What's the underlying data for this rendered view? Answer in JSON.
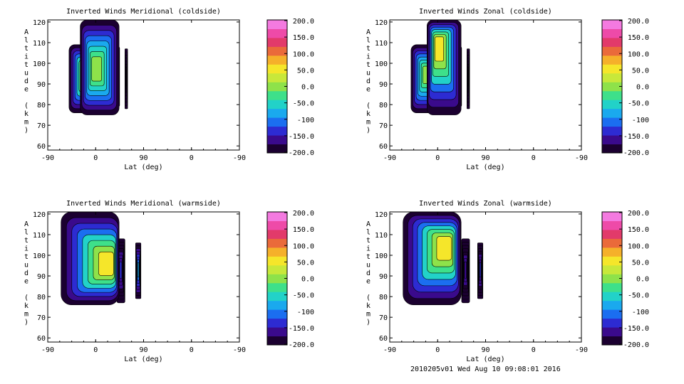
{
  "colors": {
    "background": "#ffffff",
    "axis": "#000000",
    "contour_line": "#000000",
    "colorbar": [
      "#1b0030",
      "#3a0a8c",
      "#2d2bd2",
      "#1b6ef0",
      "#1aa9ee",
      "#22d2c8",
      "#3ee08a",
      "#8ee24a",
      "#c8e83a",
      "#f5e62a",
      "#f5b02a",
      "#ea6a3a",
      "#e23a6a",
      "#ee4aa8",
      "#f47ae0"
    ]
  },
  "footer": "2010205v01 Wed Aug 10 09:08:01 2016",
  "chart_data": [
    {
      "type": "filled-contour",
      "title": "Inverted Winds Meridional (coldside)",
      "xlabel": "Lat (deg)",
      "ylabel": "Altitude (km)",
      "xticks": [
        "-90",
        "0",
        "90",
        "0",
        "-90"
      ],
      "yticks": [
        "60",
        "70",
        "80",
        "90",
        "100",
        "110",
        "120"
      ],
      "ylim": [
        58,
        121
      ],
      "colorbar_ticks": [
        "200.0",
        "150.0",
        "100.0",
        "50.0",
        "0.0",
        "-50.0",
        "-100",
        "-150.0",
        "-200.0"
      ],
      "colorbar_range": [
        -200,
        200
      ],
      "regions": [
        {
          "name": "blob-1",
          "lat_range": [
            -50,
            10
          ],
          "alt_range": [
            76,
            109
          ],
          "peak": 40,
          "center": [
            -15,
            95
          ]
        },
        {
          "name": "strip-1",
          "lat_range": [
            30,
            45
          ],
          "alt_range": [
            79,
            108
          ],
          "peak": -120,
          "center": [
            37,
            93
          ]
        },
        {
          "name": "strip-2",
          "lat_range": [
            55,
            60
          ],
          "alt_range": [
            78,
            107
          ],
          "peak": -200,
          "center": [
            57,
            93
          ]
        },
        {
          "name": "main-field",
          "lat_range": [
            -29,
            44
          ],
          "alt_range": [
            75,
            121
          ],
          "peak": 10,
          "center": [
            0,
            97
          ]
        }
      ]
    },
    {
      "type": "filled-contour",
      "title": "Inverted Winds Zonal (coldside)",
      "xlabel": "Lat (deg)",
      "ylabel": "Altitude (km)",
      "xticks": [
        "-90",
        "0",
        "90",
        "0",
        "-90"
      ],
      "yticks": [
        "60",
        "70",
        "80",
        "90",
        "100",
        "110",
        "120"
      ],
      "ylim": [
        58,
        121
      ],
      "colorbar_ticks": [
        "200.0",
        "150.0",
        "100.0",
        "50.0",
        "0.0",
        "-50.0",
        "-100",
        "-150.0",
        "-200.0"
      ],
      "colorbar_range": [
        -200,
        200
      ],
      "regions": [
        {
          "name": "blob-1",
          "lat_range": [
            -50,
            10
          ],
          "alt_range": [
            76,
            109
          ],
          "peak": -10,
          "center": [
            -20,
            95
          ]
        },
        {
          "name": "strip-1",
          "lat_range": [
            30,
            45
          ],
          "alt_range": [
            79,
            108
          ],
          "peak": -130,
          "center": [
            37,
            93
          ]
        },
        {
          "name": "strip-2",
          "lat_range": [
            55,
            60
          ],
          "alt_range": [
            78,
            107
          ],
          "peak": -200,
          "center": [
            57,
            93
          ]
        },
        {
          "name": "main-field",
          "lat_range": [
            -20,
            44
          ],
          "alt_range": [
            75,
            121
          ],
          "peak": 40,
          "center": [
            0,
            110
          ]
        }
      ]
    },
    {
      "type": "filled-contour",
      "title": "Inverted Winds Meridional (warmside)",
      "xlabel": "Lat (deg)",
      "ylabel": "Altitude (km)",
      "xticks": [
        "-90",
        "0",
        "90",
        "0",
        "-90"
      ],
      "yticks": [
        "60",
        "70",
        "80",
        "90",
        "100",
        "110",
        "120"
      ],
      "ylim": [
        58,
        121
      ],
      "colorbar_ticks": [
        "200.0",
        "150.0",
        "100.0",
        "50.0",
        "0.0",
        "-50.0",
        "-100",
        "-150.0",
        "-200.0"
      ],
      "colorbar_range": [
        -200,
        200
      ],
      "regions": [
        {
          "name": "blob-1",
          "lat_range": [
            -35,
            20
          ],
          "alt_range": [
            76,
            109
          ],
          "peak": 30,
          "center": [
            -10,
            103
          ]
        },
        {
          "name": "strip-1",
          "lat_range": [
            40,
            55
          ],
          "alt_range": [
            77,
            108
          ],
          "peak": -140,
          "center": [
            47,
            93
          ]
        },
        {
          "name": "strip-2",
          "lat_range": [
            75,
            85
          ],
          "alt_range": [
            79,
            106
          ],
          "peak": -90,
          "center": [
            80,
            93
          ]
        },
        {
          "name": "main-field",
          "lat_range": [
            -65,
            44
          ],
          "alt_range": [
            76,
            121
          ],
          "peak": 40,
          "center": [
            30,
            95
          ]
        }
      ]
    },
    {
      "type": "filled-contour",
      "title": "Inverted Winds Zonal (warmside)",
      "xlabel": "Lat (deg)",
      "ylabel": "Altitude (km)",
      "xticks": [
        "-90",
        "0",
        "90",
        "0",
        "-90"
      ],
      "yticks": [
        "60",
        "70",
        "80",
        "90",
        "100",
        "110",
        "120"
      ],
      "ylim": [
        58,
        121
      ],
      "colorbar_ticks": [
        "200.0",
        "150.0",
        "100.0",
        "50.0",
        "0.0",
        "-50.0",
        "-100",
        "-150.0",
        "-200.0"
      ],
      "colorbar_range": [
        -200,
        200
      ],
      "regions": [
        {
          "name": "blob-1",
          "lat_range": [
            -35,
            20
          ],
          "alt_range": [
            76,
            109
          ],
          "peak": 55,
          "center": [
            0,
            92
          ]
        },
        {
          "name": "strip-1",
          "lat_range": [
            45,
            60
          ],
          "alt_range": [
            77,
            108
          ],
          "peak": -160,
          "center": [
            52,
            93
          ]
        },
        {
          "name": "strip-2",
          "lat_range": [
            75,
            85
          ],
          "alt_range": [
            79,
            106
          ],
          "peak": -140,
          "center": [
            80,
            93
          ]
        },
        {
          "name": "main-field",
          "lat_range": [
            -65,
            44
          ],
          "alt_range": [
            76,
            121
          ],
          "peak": 40,
          "center": [
            20,
            105
          ]
        }
      ]
    }
  ]
}
